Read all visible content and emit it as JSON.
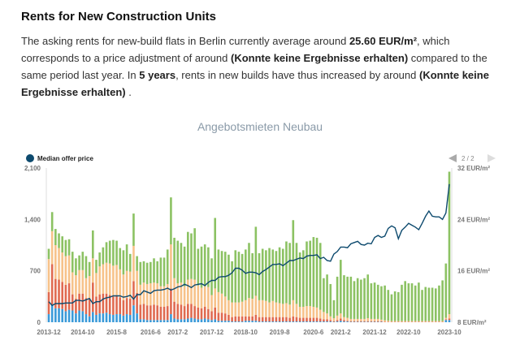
{
  "heading": "Rents for New Construction Units",
  "paragraph": {
    "p1": "The asking rents for new-build flats in Berlin currently average around ",
    "avg": "25.60 EUR/m²",
    "p2": ", which corresponds to a price adjustment of around ",
    "r1": "(Konnte keine Ergebnisse erhalten)",
    "p3": " compared to the same period last year. In ",
    "years": "5 years",
    "p4": ", rents in new builds have thus increased by around ",
    "r2": "(Konnte keine Ergebnisse erhalten)",
    "p5": " ."
  },
  "pager": "2 / 2",
  "chart_data": {
    "type": "bar",
    "title": "Angebotsmieten Neubau",
    "legend": [
      {
        "name": "Median offer price",
        "color": "#0d4a6e"
      }
    ],
    "legend_placement": "top-left",
    "y_left": {
      "ylim": [
        0,
        2100
      ],
      "ticks": [
        "0",
        "700",
        "1,400",
        "2,100"
      ]
    },
    "y_right": {
      "ylim": [
        8,
        32
      ],
      "ticks": [
        "8 EUR/m²",
        "16 EUR/m²",
        "24 EUR/m²",
        "32 EUR/m²"
      ]
    },
    "x_ticks": [
      {
        "label": "2013-12",
        "index": 0
      },
      {
        "label": "2014-10",
        "index": 10
      },
      {
        "label": "2015-8",
        "index": 20
      },
      {
        "label": "2016-6",
        "index": 30
      },
      {
        "label": "2017-2",
        "index": 38
      },
      {
        "label": "2017-12",
        "index": 48
      },
      {
        "label": "2018-10",
        "index": 58
      },
      {
        "label": "2019-8",
        "index": 68
      },
      {
        "label": "2020-6",
        "index": 78
      },
      {
        "label": "2021-2",
        "index": 86
      },
      {
        "label": "2021-12",
        "index": 96
      },
      {
        "label": "2022-10",
        "index": 106
      },
      {
        "label": "2023-10",
        "index": 118
      }
    ],
    "stack_colors": [
      "#3a9ad9",
      "#e06a50",
      "#f7c28a",
      "#8cc263"
    ],
    "totals": [
      1000,
      1500,
      1270,
      1210,
      1170,
      1120,
      1130,
      960,
      870,
      910,
      960,
      900,
      820,
      1250,
      850,
      950,
      1020,
      1090,
      1110,
      1120,
      1110,
      1010,
      980,
      1060,
      930,
      1480,
      900,
      820,
      830,
      810,
      820,
      870,
      830,
      880,
      880,
      990,
      1700,
      1150,
      1110,
      1080,
      1030,
      1230,
      1210,
      1280,
      1000,
      1030,
      1060,
      1020,
      870,
      1420,
      990,
      970,
      960,
      920,
      830,
      980,
      960,
      930,
      990,
      1080,
      940,
      1300,
      940,
      1000,
      980,
      1010,
      990,
      970,
      1020,
      1000,
      1100,
      1080,
      1390,
      1080,
      950,
      980,
      1100,
      1110,
      1160,
      1150,
      1080,
      600,
      650,
      520,
      300,
      620,
      850,
      640,
      620,
      620,
      560,
      600,
      580,
      600,
      650,
      530,
      540,
      510,
      490,
      500,
      440,
      380,
      420,
      410,
      510,
      560,
      530,
      530,
      500,
      540,
      440,
      480,
      470,
      470,
      460,
      500,
      570,
      800,
      2050
    ],
    "blue": [
      110,
      240,
      190,
      190,
      180,
      150,
      170,
      160,
      120,
      160,
      150,
      110,
      80,
      140,
      100,
      120,
      120,
      130,
      110,
      100,
      110,
      110,
      90,
      110,
      100,
      230,
      120,
      40,
      40,
      30,
      30,
      30,
      30,
      30,
      30,
      30,
      110,
      50,
      40,
      40,
      40,
      50,
      60,
      50,
      40,
      40,
      50,
      40,
      30,
      40,
      20,
      20,
      20,
      20,
      10,
      10,
      10,
      10,
      20,
      20,
      20,
      20,
      10,
      10,
      10,
      10,
      10,
      10,
      10,
      10,
      10,
      10,
      10,
      10,
      10,
      10,
      10,
      10,
      10,
      10,
      10,
      10,
      10,
      10,
      5,
      10,
      20,
      10,
      10,
      5,
      5,
      5,
      5,
      5,
      5,
      5,
      5,
      5,
      5,
      0,
      0,
      0,
      0,
      0,
      0,
      0,
      0,
      0,
      0,
      0,
      0,
      0,
      0,
      0,
      0,
      0,
      0,
      30,
      30
    ],
    "red": [
      300,
      550,
      400,
      390,
      370,
      360,
      360,
      220,
      200,
      230,
      240,
      220,
      240,
      400,
      250,
      260,
      270,
      260,
      260,
      250,
      250,
      230,
      210,
      220,
      220,
      330,
      280,
      200,
      210,
      200,
      200,
      210,
      200,
      180,
      180,
      190,
      350,
      230,
      210,
      200,
      180,
      200,
      190,
      170,
      160,
      150,
      160,
      140,
      120,
      160,
      110,
      110,
      100,
      80,
      60,
      70,
      70,
      70,
      60,
      60,
      60,
      80,
      60,
      60,
      60,
      60,
      60,
      60,
      60,
      60,
      60,
      50,
      70,
      60,
      50,
      50,
      50,
      50,
      50,
      50,
      40,
      30,
      30,
      20,
      10,
      20,
      30,
      20,
      10,
      10,
      10,
      10,
      10,
      10,
      10,
      10,
      10,
      10,
      10,
      5,
      5,
      5,
      5,
      5,
      5,
      5,
      5,
      5,
      5,
      5,
      5,
      5,
      5,
      5,
      5,
      5,
      5,
      10,
      20
    ],
    "orange": [
      450,
      450,
      460,
      430,
      400,
      390,
      380,
      300,
      320,
      320,
      320,
      270,
      310,
      330,
      320,
      380,
      400,
      420,
      430,
      420,
      420,
      380,
      350,
      370,
      370,
      480,
      300,
      270,
      290,
      290,
      300,
      300,
      300,
      280,
      280,
      300,
      600,
      320,
      280,
      300,
      270,
      330,
      340,
      360,
      300,
      280,
      280,
      300,
      220,
      260,
      280,
      260,
      230,
      200,
      200,
      190,
      190,
      200,
      220,
      250,
      240,
      260,
      230,
      230,
      220,
      200,
      220,
      200,
      190,
      180,
      190,
      180,
      220,
      180,
      150,
      150,
      160,
      160,
      150,
      140,
      120,
      100,
      80,
      50,
      40,
      60,
      70,
      40,
      40,
      30,
      30,
      30,
      30,
      30,
      40,
      30,
      30,
      30,
      20,
      20,
      15,
      10,
      10,
      10,
      10,
      10,
      10,
      10,
      10,
      10,
      10,
      10,
      10,
      10,
      10,
      10,
      10,
      20,
      60
    ],
    "median_price": [
      11.2,
      10.6,
      10.9,
      10.9,
      10.9,
      11.0,
      11.0,
      11.0,
      11.4,
      11.4,
      11.3,
      11.5,
      11.7,
      10.9,
      11.2,
      11.2,
      11.6,
      11.8,
      11.9,
      12.1,
      12.1,
      12.1,
      11.9,
      12.0,
      12.2,
      11.6,
      12.3,
      12.3,
      12.9,
      12.7,
      12.5,
      12.9,
      13.0,
      13.0,
      13.1,
      13.3,
      13.0,
      13.2,
      13.5,
      13.6,
      13.9,
      13.7,
      13.4,
      13.8,
      13.9,
      14.0,
      13.7,
      14.2,
      14.5,
      14.5,
      15.0,
      15.1,
      15.1,
      15.3,
      15.7,
      16.4,
      16.4,
      16.1,
      15.6,
      15.8,
      15.8,
      15.7,
      15.4,
      15.9,
      16.2,
      16.6,
      17.0,
      17.0,
      17.1,
      16.8,
      17.2,
      17.6,
      17.6,
      17.8,
      18.0,
      17.9,
      18.3,
      18.4,
      18.4,
      18.5,
      17.9,
      18.1,
      17.6,
      17.5,
      18.6,
      19.0,
      19.7,
      19.7,
      19.6,
      20.2,
      20.4,
      20.6,
      20.1,
      20.0,
      20.3,
      20.2,
      21.2,
      21.5,
      21.2,
      21.4,
      22.6,
      23.0,
      22.7,
      21.0,
      22.3,
      22.8,
      23.4,
      23.1,
      22.8,
      22.4,
      23.4,
      24.5,
      25.3,
      24.5,
      24.4,
      24.4,
      24.0,
      25.0,
      29.5
    ]
  }
}
